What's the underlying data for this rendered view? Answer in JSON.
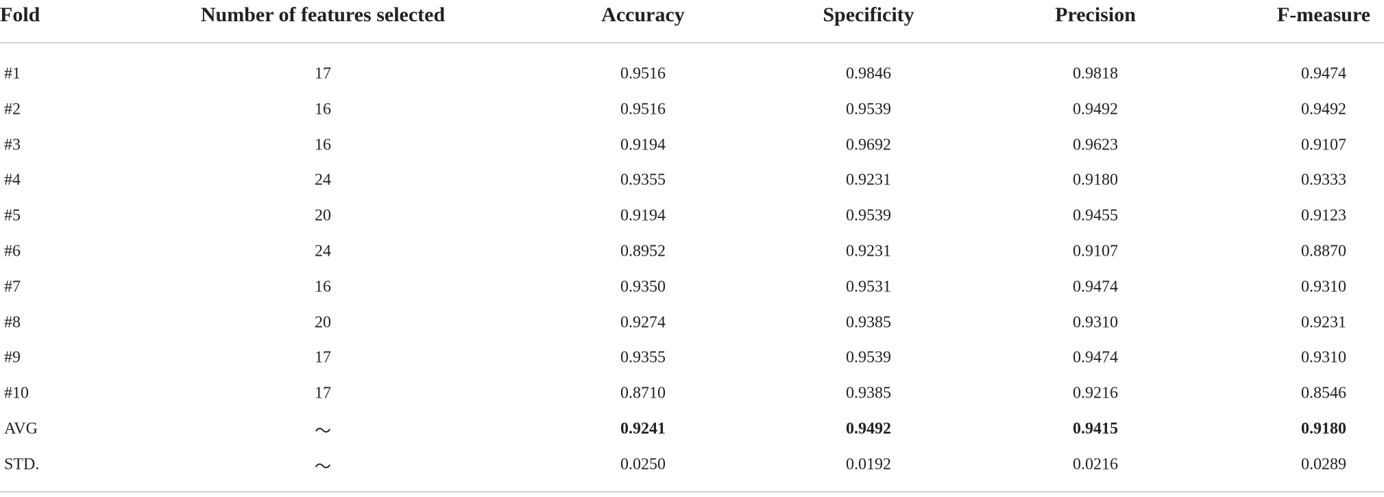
{
  "table": {
    "header": [
      "Fold",
      "Number of features selected",
      "Accuracy",
      "Specificity",
      "Precision",
      "F-measure"
    ],
    "rows": [
      [
        "#1",
        "17",
        "0.9516",
        "0.9846",
        "0.9818",
        "0.9474"
      ],
      [
        "#2",
        "16",
        "0.9516",
        "0.9539",
        "0.9492",
        "0.9492"
      ],
      [
        "#3",
        "16",
        "0.9194",
        "0.9692",
        "0.9623",
        "0.9107"
      ],
      [
        "#4",
        "24",
        "0.9355",
        "0.9231",
        "0.9180",
        "0.9333"
      ],
      [
        "#5",
        "20",
        "0.9194",
        "0.9539",
        "0.9455",
        "0.9123"
      ],
      [
        "#6",
        "24",
        "0.8952",
        "0.9231",
        "0.9107",
        "0.8870"
      ],
      [
        "#7",
        "16",
        "0.9350",
        "0.9531",
        "0.9474",
        "0.9310"
      ],
      [
        "#8",
        "20",
        "0.9274",
        "0.9385",
        "0.9310",
        "0.9231"
      ],
      [
        "#9",
        "17",
        "0.9355",
        "0.9539",
        "0.9474",
        "0.9310"
      ],
      [
        "#10",
        "17",
        "0.8710",
        "0.9385",
        "0.9216",
        "0.8546"
      ],
      [
        "AVG",
        "～",
        "0.9241",
        "0.9492",
        "0.9415",
        "0.9180"
      ],
      [
        "STD.",
        "～",
        "0.0250",
        "0.0192",
        "0.0216",
        "0.0289"
      ]
    ]
  }
}
